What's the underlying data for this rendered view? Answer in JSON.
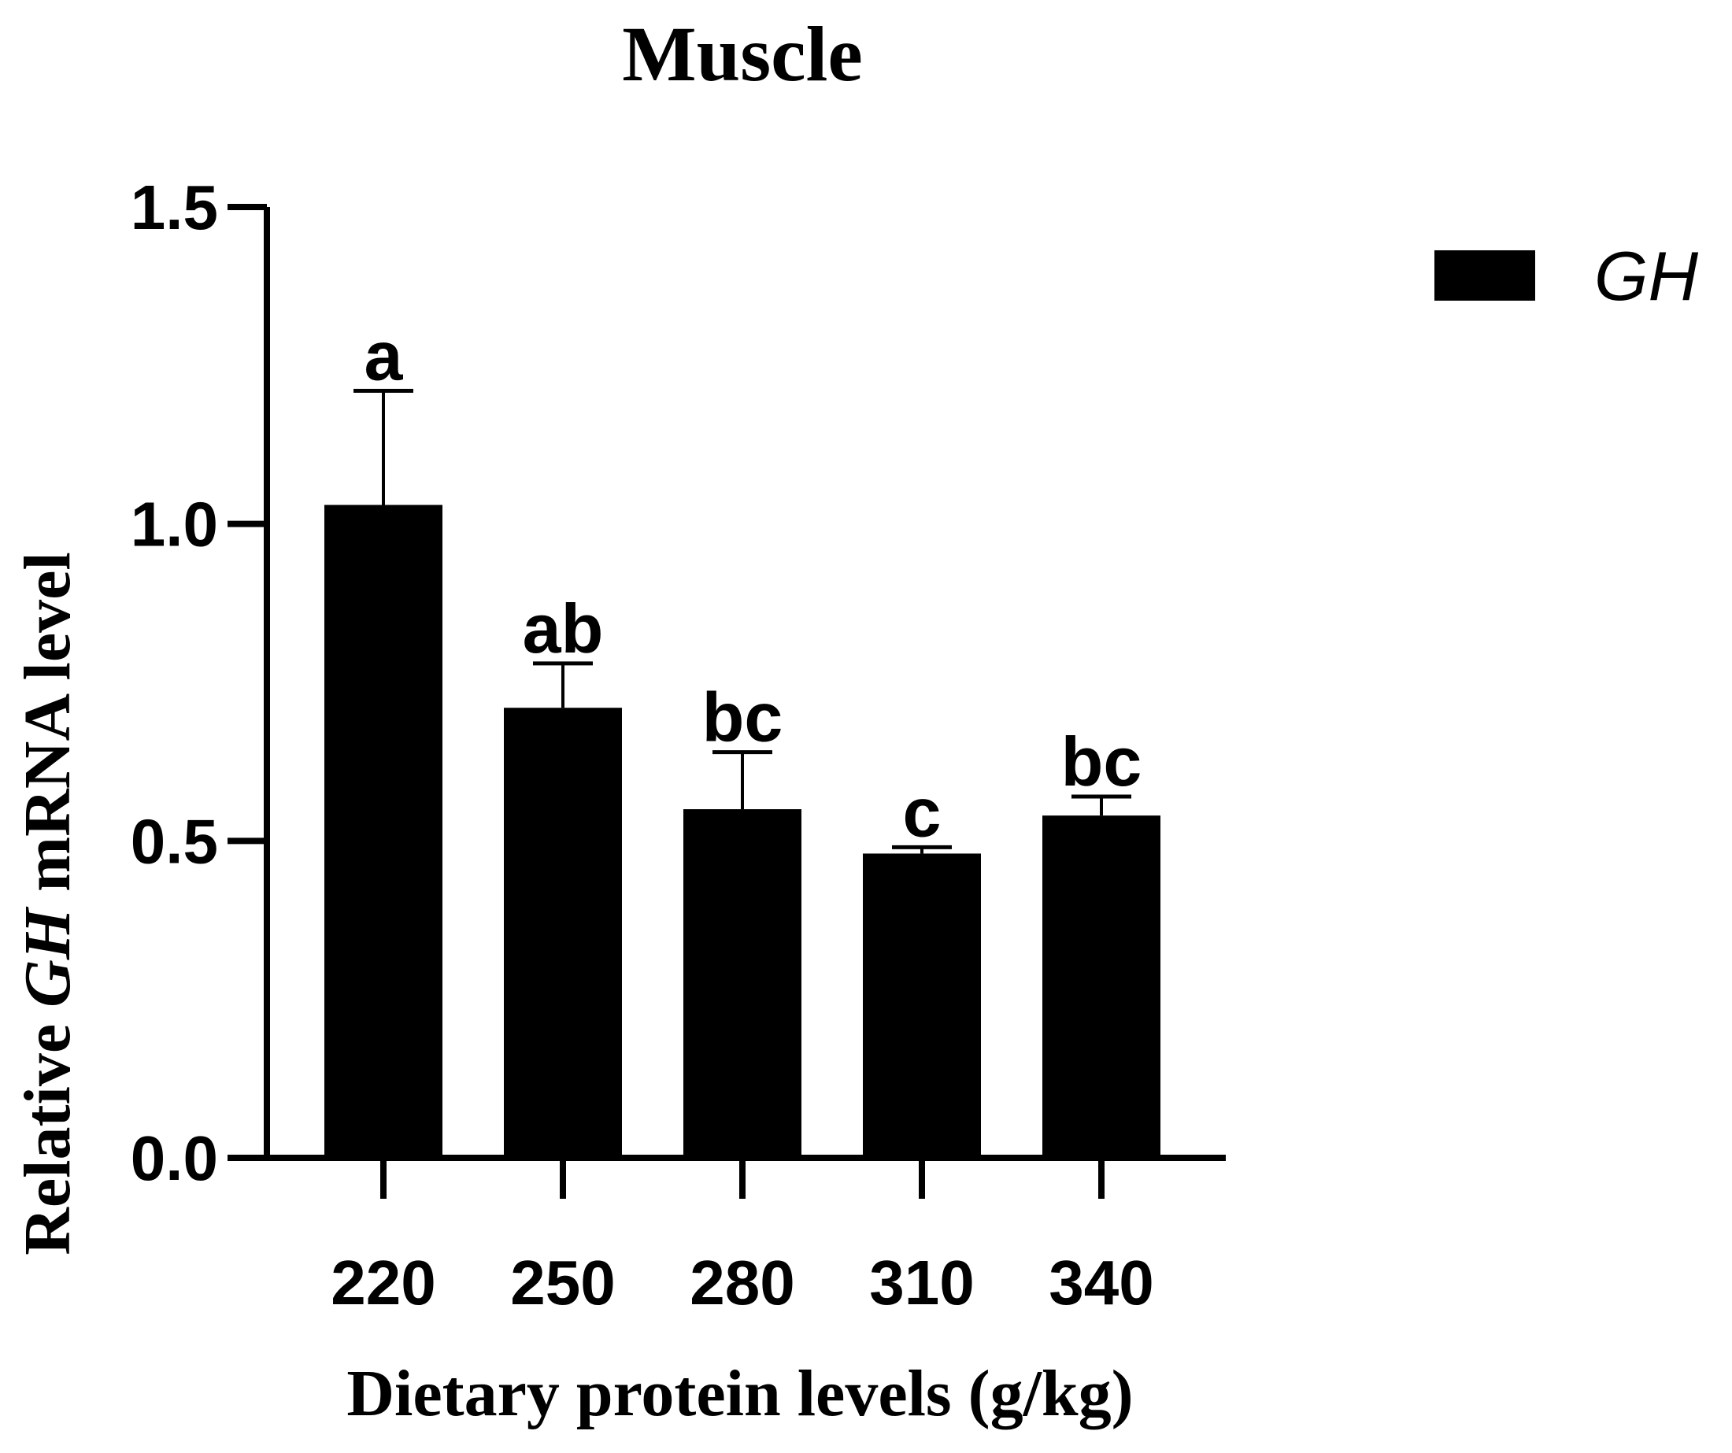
{
  "chart_data": {
    "type": "bar",
    "title": "Muscle",
    "xlabel": "Dietary protein levels (g/kg)",
    "ylabel": {
      "prefix": "Relative ",
      "gene": "GH",
      "suffix": " mRNA level"
    },
    "categories": [
      "220",
      "250",
      "280",
      "310",
      "340"
    ],
    "series": [
      {
        "name": "GH",
        "values": [
          1.03,
          0.71,
          0.55,
          0.48,
          0.54
        ],
        "errors": [
          0.18,
          0.07,
          0.09,
          0.01,
          0.03
        ],
        "significance": [
          "a",
          "ab",
          "bc",
          "c",
          "bc"
        ],
        "color": "#000000"
      }
    ],
    "ylim": [
      0,
      1.5
    ],
    "yticks": [
      0.0,
      0.5,
      1.0,
      1.5
    ],
    "ytick_labels": [
      "0.0",
      "0.5",
      "1.0",
      "1.5"
    ],
    "legend": {
      "position": "top-right",
      "entries": [
        "GH"
      ]
    },
    "grid": false
  }
}
